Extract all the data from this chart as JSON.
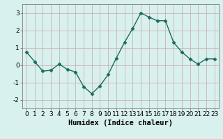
{
  "x": [
    0,
    1,
    2,
    3,
    4,
    5,
    6,
    7,
    8,
    9,
    10,
    11,
    12,
    13,
    14,
    15,
    16,
    17,
    18,
    19,
    20,
    21,
    22,
    23
  ],
  "y": [
    0.75,
    0.2,
    -0.35,
    -0.3,
    0.05,
    -0.25,
    -0.4,
    -1.25,
    -1.65,
    -1.2,
    -0.55,
    0.4,
    1.3,
    2.1,
    3.0,
    2.75,
    2.55,
    2.55,
    1.3,
    0.75,
    0.35,
    0.05,
    0.35,
    0.35
  ],
  "line_color": "#1a6b5a",
  "marker": "D",
  "marker_size": 2.5,
  "bg_color": "#d8f0ee",
  "grid_color_major": "#c0d0ce",
  "grid_color_minor": "#ddecea",
  "xlabel": "Humidex (Indice chaleur)",
  "xlim": [
    -0.5,
    23.5
  ],
  "ylim": [
    -2.5,
    3.5
  ],
  "yticks": [
    -2,
    -1,
    0,
    1,
    2,
    3
  ],
  "xticks": [
    0,
    1,
    2,
    3,
    4,
    5,
    6,
    7,
    8,
    9,
    10,
    11,
    12,
    13,
    14,
    15,
    16,
    17,
    18,
    19,
    20,
    21,
    22,
    23
  ],
  "xlabel_fontsize": 7.5,
  "tick_fontsize": 6.5
}
